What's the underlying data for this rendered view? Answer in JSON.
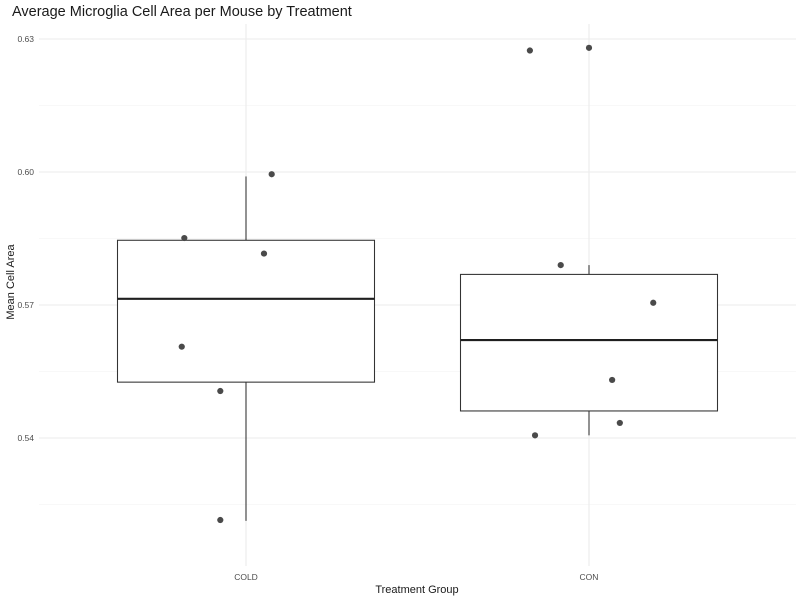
{
  "chart_data": {
    "type": "boxplot",
    "title": "Average Microglia Cell Area per Mouse by Treatment",
    "xlabel": "Treatment Group",
    "ylabel": "Mean Cell Area",
    "categories": [
      "COLD",
      "CON"
    ],
    "ylim": [
      0.5185,
      0.6335
    ],
    "yticks": [
      0.54,
      0.57,
      0.6,
      0.63
    ],
    "ytick_labels": [
      "0.54",
      "0.57",
      "0.60",
      "0.63"
    ],
    "grid": true,
    "legend": "none",
    "boxes": [
      {
        "category": "COLD",
        "min": 0.5213,
        "q1": 0.5526,
        "median": 0.5714,
        "q3": 0.5846,
        "max": 0.599
      },
      {
        "category": "CON",
        "min": 0.5406,
        "q1": 0.5461,
        "median": 0.5621,
        "q3": 0.5769,
        "max": 0.579
      }
    ],
    "points": [
      {
        "category": "COLD",
        "jitter": -0.24,
        "y": 0.5851
      },
      {
        "category": "COLD",
        "jitter": 0.07,
        "y": 0.5816
      },
      {
        "category": "COLD",
        "jitter": 0.1,
        "y": 0.5995
      },
      {
        "category": "COLD",
        "jitter": -0.25,
        "y": 0.5606
      },
      {
        "category": "COLD",
        "jitter": -0.1,
        "y": 0.5506
      },
      {
        "category": "COLD",
        "jitter": -0.1,
        "y": 0.5215
      },
      {
        "category": "CON",
        "jitter": -0.23,
        "y": 0.6274
      },
      {
        "category": "CON",
        "jitter": 0.0,
        "y": 0.628
      },
      {
        "category": "CON",
        "jitter": -0.11,
        "y": 0.579
      },
      {
        "category": "CON",
        "jitter": 0.25,
        "y": 0.5705
      },
      {
        "category": "CON",
        "jitter": 0.09,
        "y": 0.5531
      },
      {
        "category": "CON",
        "jitter": 0.12,
        "y": 0.5434
      },
      {
        "category": "CON",
        "jitter": -0.21,
        "y": 0.5406
      }
    ]
  }
}
